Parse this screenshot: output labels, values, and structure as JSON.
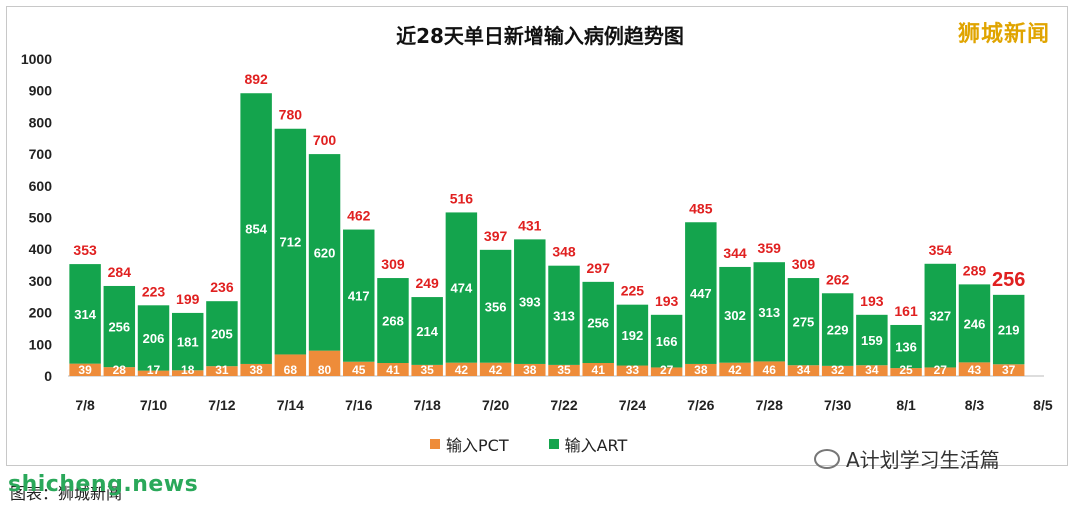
{
  "header": {
    "title": "近28天单日新增输入病例趋势图",
    "brand": "狮城新闻"
  },
  "footer": {
    "wechat_label": "A计划学习生活篇",
    "watermark_url": "shicheng.news",
    "caption": "图表：狮城新闻"
  },
  "colors": {
    "pct": "#ee8c3a",
    "art": "#14a44d",
    "total_label": "#e02020"
  },
  "chart_data": {
    "type": "bar",
    "stacked": true,
    "title": "近28天单日新增输入病例趋势图",
    "xlabel": "",
    "ylabel": "",
    "ylim": [
      0,
      1000
    ],
    "yticks": [
      0,
      100,
      200,
      300,
      400,
      500,
      600,
      700,
      800,
      900,
      1000
    ],
    "grid": false,
    "legend_position": "bottom",
    "categories": [
      "7/8",
      "7/9",
      "7/10",
      "7/11",
      "7/12",
      "7/13",
      "7/14",
      "7/15",
      "7/16",
      "7/17",
      "7/18",
      "7/19",
      "7/20",
      "7/21",
      "7/22",
      "7/23",
      "7/24",
      "7/25",
      "7/26",
      "7/27",
      "7/28",
      "7/29",
      "7/30",
      "7/31",
      "8/1",
      "8/2",
      "8/3",
      "8/4",
      "8/5"
    ],
    "x_tick_labels": [
      "7/8",
      "",
      "7/10",
      "",
      "7/12",
      "",
      "7/14",
      "",
      "7/16",
      "",
      "7/18",
      "",
      "7/20",
      "",
      "7/22",
      "",
      "7/24",
      "",
      "7/26",
      "",
      "7/28",
      "",
      "7/30",
      "",
      "8/1",
      "",
      "8/3",
      "",
      "8/5"
    ],
    "series": [
      {
        "name": "输入PCT",
        "values": [
          39,
          28,
          17,
          18,
          31,
          38,
          68,
          80,
          45,
          41,
          35,
          42,
          42,
          38,
          35,
          41,
          33,
          27,
          38,
          42,
          46,
          34,
          32,
          34,
          25,
          27,
          43,
          37,
          null
        ]
      },
      {
        "name": "输入ART",
        "values": [
          314,
          256,
          206,
          181,
          205,
          854,
          712,
          620,
          417,
          268,
          214,
          474,
          356,
          393,
          313,
          256,
          192,
          166,
          447,
          302,
          313,
          275,
          229,
          159,
          136,
          327,
          246,
          219,
          null
        ]
      }
    ],
    "totals": [
      353,
      284,
      223,
      199,
      236,
      892,
      780,
      700,
      462,
      309,
      249,
      516,
      397,
      431,
      348,
      297,
      225,
      193,
      485,
      344,
      359,
      309,
      262,
      193,
      161,
      354,
      289,
      256,
      null
    ]
  }
}
